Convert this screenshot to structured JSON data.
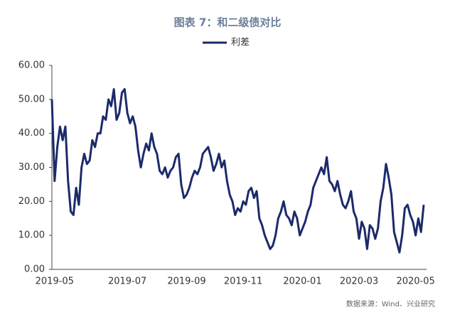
{
  "chart_data": {
    "type": "line",
    "title": "图表 7：和二级债对比",
    "source": "数据来源：Wind、兴业研究",
    "categories": [
      null,
      "2019-05",
      null,
      null,
      null,
      null,
      null,
      null,
      null,
      null,
      null,
      null,
      null,
      null,
      null,
      null,
      null,
      null,
      null,
      null,
      null,
      null,
      null,
      null,
      null,
      null,
      null,
      null,
      "2019-07",
      null,
      null,
      null,
      null,
      null,
      null,
      null,
      null,
      null,
      null,
      null,
      null,
      null,
      null,
      null,
      null,
      null,
      null,
      null,
      null,
      null,
      "2019-09",
      null,
      null,
      null,
      null,
      null,
      null,
      null,
      null,
      null,
      null,
      null,
      null,
      null,
      null,
      null,
      null,
      null,
      null,
      null,
      null,
      "2019-11",
      null,
      null,
      null,
      null,
      null,
      null,
      null,
      null,
      null,
      null,
      null,
      null,
      null,
      null,
      null,
      null,
      null,
      null,
      null,
      null,
      null,
      "2020-01",
      null,
      null,
      null,
      null,
      null,
      null,
      null,
      null,
      null,
      null,
      null,
      null,
      null,
      null,
      null,
      null,
      null,
      null,
      null,
      null,
      "2020-03",
      null,
      null,
      null,
      null,
      null,
      null,
      null,
      null,
      null,
      null,
      null,
      null,
      null,
      null,
      null,
      null,
      null,
      null,
      null,
      null,
      "2020-05",
      null,
      null,
      null
    ],
    "series": [
      {
        "name": "利差",
        "color": "#1b2a6b",
        "values": [
          50,
          26,
          36,
          42,
          38,
          42,
          26,
          17,
          16,
          24,
          19,
          30,
          34,
          31,
          32,
          38,
          36,
          40,
          40,
          45,
          44,
          50,
          48,
          53,
          44,
          46,
          52,
          53,
          46,
          43,
          45,
          42,
          35,
          30,
          34,
          37,
          35,
          40,
          36,
          34,
          29,
          28,
          30,
          27,
          29,
          30,
          33,
          34,
          25,
          21,
          22,
          24,
          27,
          29,
          28,
          30,
          34,
          35,
          36,
          33,
          29,
          31,
          34,
          30,
          32,
          26,
          22,
          20,
          16,
          18,
          17,
          20,
          19,
          23,
          24,
          21,
          23,
          15,
          13,
          10,
          8,
          6,
          7,
          10,
          15,
          17,
          20,
          16,
          15,
          13,
          17,
          15,
          10,
          12,
          14,
          17,
          19,
          24,
          26,
          28,
          30,
          28,
          33,
          26,
          25,
          23,
          26,
          22,
          19,
          18,
          20,
          23,
          17,
          15,
          9,
          14,
          12,
          6,
          13,
          12,
          9,
          12,
          20,
          24,
          31,
          27,
          22,
          11,
          8,
          5,
          10,
          18,
          19,
          16,
          14,
          10,
          15,
          11,
          19
        ]
      }
    ],
    "ylim": [
      0,
      60
    ],
    "yticks": [
      {
        "value": 0,
        "label": "0.00"
      },
      {
        "value": 10,
        "label": "10.00"
      },
      {
        "value": 20,
        "label": "20.00"
      },
      {
        "value": 30,
        "label": "30.00"
      },
      {
        "value": 40,
        "label": "40.00"
      },
      {
        "value": 50,
        "label": "50.00"
      },
      {
        "value": 60,
        "label": "60.00"
      }
    ],
    "grid": false
  }
}
